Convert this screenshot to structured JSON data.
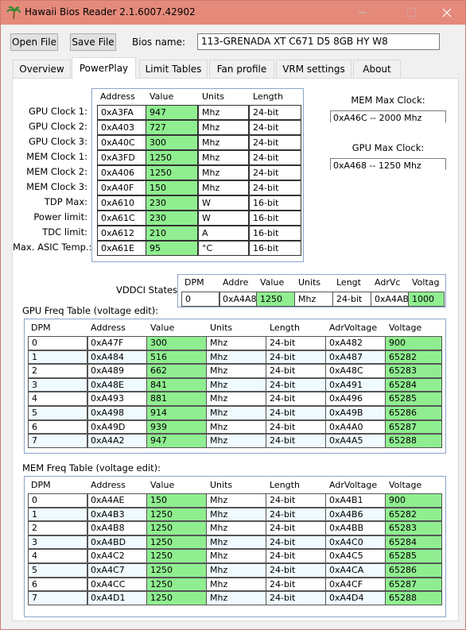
{
  "window": {
    "title": "Hawaii Bios Reader 2.1.6007.42902"
  },
  "toolbar": {
    "open_button": "Open File",
    "save_button": "Save File",
    "bios_label": "Bios name:",
    "bios_name": "113-GRENADA XT C671 D5 8GB HY W8"
  },
  "tabs": [
    "Overview",
    "PowerPlay",
    "Limit Tables",
    "Fan profile",
    "VRM settings",
    "About"
  ],
  "powerplay": {
    "columns": [
      "Address",
      "Value",
      "Units",
      "Length"
    ],
    "rows": [
      {
        "label": "GPU Clock 1:",
        "cells": [
          "0xA3FA",
          "947",
          "Mhz",
          "24-bit"
        ]
      },
      {
        "label": "GPU Clock 2:",
        "cells": [
          "0xA403",
          "727",
          "Mhz",
          "24-bit"
        ]
      },
      {
        "label": "GPU Clock 3:",
        "cells": [
          "0xA40C",
          "300",
          "Mhz",
          "24-bit"
        ]
      },
      {
        "label": "MEM Clock 1:",
        "cells": [
          "0xA3FD",
          "1250",
          "Mhz",
          "24-bit"
        ]
      },
      {
        "label": "MEM Clock 2:",
        "cells": [
          "0xA406",
          "1250",
          "Mhz",
          "24-bit"
        ]
      },
      {
        "label": "MEM Clock 3:",
        "cells": [
          "0xA40F",
          "150",
          "Mhz",
          "24-bit"
        ]
      },
      {
        "label": "TDP Max:",
        "cells": [
          "0xA610",
          "230",
          "W",
          "16-bit"
        ]
      },
      {
        "label": "Power limit:",
        "cells": [
          "0xA61C",
          "230",
          "W",
          "16-bit"
        ]
      },
      {
        "label": "TDC limit:",
        "cells": [
          "0xA612",
          "210",
          "A",
          "16-bit"
        ]
      },
      {
        "label": "Max. ASIC Temp.:",
        "cells": [
          "0xA61E",
          "95",
          "°C",
          "16-bit"
        ]
      }
    ]
  },
  "mem_max_clock": {
    "label": "MEM Max Clock:",
    "value": "0xA46C -- 2000 Mhz"
  },
  "gpu_max_clock": {
    "label": "GPU Max Clock:",
    "value": "0xA468 -- 1250 Mhz"
  },
  "vddci": {
    "label": "VDDCI States:",
    "columns": [
      "DPM",
      "Addre",
      "Value",
      "Units",
      "Lengt",
      "AdrVc",
      "Voltag"
    ],
    "rows": [
      [
        "0",
        "0xA4A8",
        "1250",
        "Mhz",
        "24-bit",
        "0xA4AB",
        "1000"
      ]
    ]
  },
  "gpu_freq_table": {
    "label": "GPU Freq Table (voltage edit):",
    "columns": [
      "DPM",
      "Address",
      "Value",
      "Units",
      "Length",
      "AdrVoltage",
      "Voltage"
    ],
    "rows": [
      [
        "0",
        "0xA47F",
        "300",
        "Mhz",
        "24-bit",
        "0xA482",
        "900"
      ],
      [
        "1",
        "0xA484",
        "516",
        "Mhz",
        "24-bit",
        "0xA487",
        "65282"
      ],
      [
        "2",
        "0xA489",
        "662",
        "Mhz",
        "24-bit",
        "0xA48C",
        "65283"
      ],
      [
        "3",
        "0xA48E",
        "841",
        "Mhz",
        "24-bit",
        "0xA491",
        "65284"
      ],
      [
        "4",
        "0xA493",
        "881",
        "Mhz",
        "24-bit",
        "0xA496",
        "65285"
      ],
      [
        "5",
        "0xA498",
        "914",
        "Mhz",
        "24-bit",
        "0xA49B",
        "65286"
      ],
      [
        "6",
        "0xA49D",
        "939",
        "Mhz",
        "24-bit",
        "0xA4A0",
        "65287"
      ],
      [
        "7",
        "0xA4A2",
        "947",
        "Mhz",
        "24-bit",
        "0xA4A5",
        "65288"
      ]
    ]
  },
  "mem_freq_table": {
    "label": "MEM Freq Table (voltage edit):",
    "columns": [
      "DPM",
      "Address",
      "Value",
      "Units",
      "Length",
      "AdrVoltage",
      "Voltage"
    ],
    "rows": [
      [
        "0",
        "0xA4AE",
        "150",
        "Mhz",
        "24-bit",
        "0xA4B1",
        "900"
      ],
      [
        "1",
        "0xA4B3",
        "1250",
        "Mhz",
        "24-bit",
        "0xA4B6",
        "65282"
      ],
      [
        "2",
        "0xA4B8",
        "1250",
        "Mhz",
        "24-bit",
        "0xA4BB",
        "65283"
      ],
      [
        "3",
        "0xA4BD",
        "1250",
        "Mhz",
        "24-bit",
        "0xA4C0",
        "65284"
      ],
      [
        "4",
        "0xA4C2",
        "1250",
        "Mhz",
        "24-bit",
        "0xA4C5",
        "65285"
      ],
      [
        "5",
        "0xA4C7",
        "1250",
        "Mhz",
        "24-bit",
        "0xA4CA",
        "65286"
      ],
      [
        "6",
        "0xA4CC",
        "1250",
        "Mhz",
        "24-bit",
        "0xA4CF",
        "65287"
      ],
      [
        "7",
        "0xA4D1",
        "1250",
        "Mhz",
        "24-bit",
        "0xA4D4",
        "65288"
      ]
    ]
  }
}
